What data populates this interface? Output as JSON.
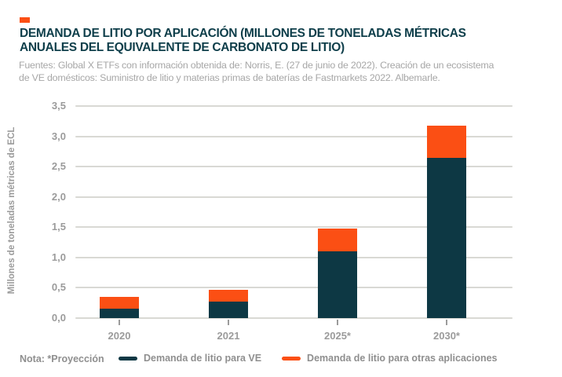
{
  "page": {
    "background_color": "#ffffff"
  },
  "header": {
    "logo_color": "#fb4f14",
    "title": "DEMANDA DE LITIO POR APLICACIÓN (MILLONES DE TONELADAS MÉTRICAS\nANUALES DEL EQUIVALENTE DE CARBONATO DE LITIO)",
    "title_color": "#0e3e4a",
    "subtitle": "Fuentes: Global X ETFs con información obtenida de: Norris, E. (27 de junio de 2022). Creación de un ecosistema\nde VE domésticos: Suministro de litio y materias primas de baterías de Fastmarkets 2022. Albemarle."
  },
  "chart_data": {
    "type": "bar",
    "stacked": true,
    "categories": [
      "2020",
      "2021",
      "2025*",
      "2030*"
    ],
    "series": [
      {
        "name": "Demanda de litio para VE",
        "color": "#0d3844",
        "values": [
          0.15,
          0.27,
          1.1,
          2.65
        ]
      },
      {
        "name": "Demanda de litio para otras aplicaciones",
        "color": "#fb4f14",
        "values": [
          0.2,
          0.2,
          0.38,
          0.52
        ]
      }
    ],
    "totals": [
      0.35,
      0.47,
      1.48,
      3.17
    ],
    "ylabel": "Millones de toneladas métricas de ECL",
    "ylim": [
      0,
      3.5
    ],
    "y_tick_step": 0.5,
    "y_ticks": [
      "0,0",
      "0,5",
      "1,0",
      "1,5",
      "2,0",
      "2,5",
      "3,0",
      "3,5"
    ],
    "grid": true,
    "gridline_color": "#d9d9d4",
    "tick_label_color": "#9b9b9b",
    "legend_position": "bottom"
  },
  "footer": {
    "note": "Nota: *Proyección"
  }
}
